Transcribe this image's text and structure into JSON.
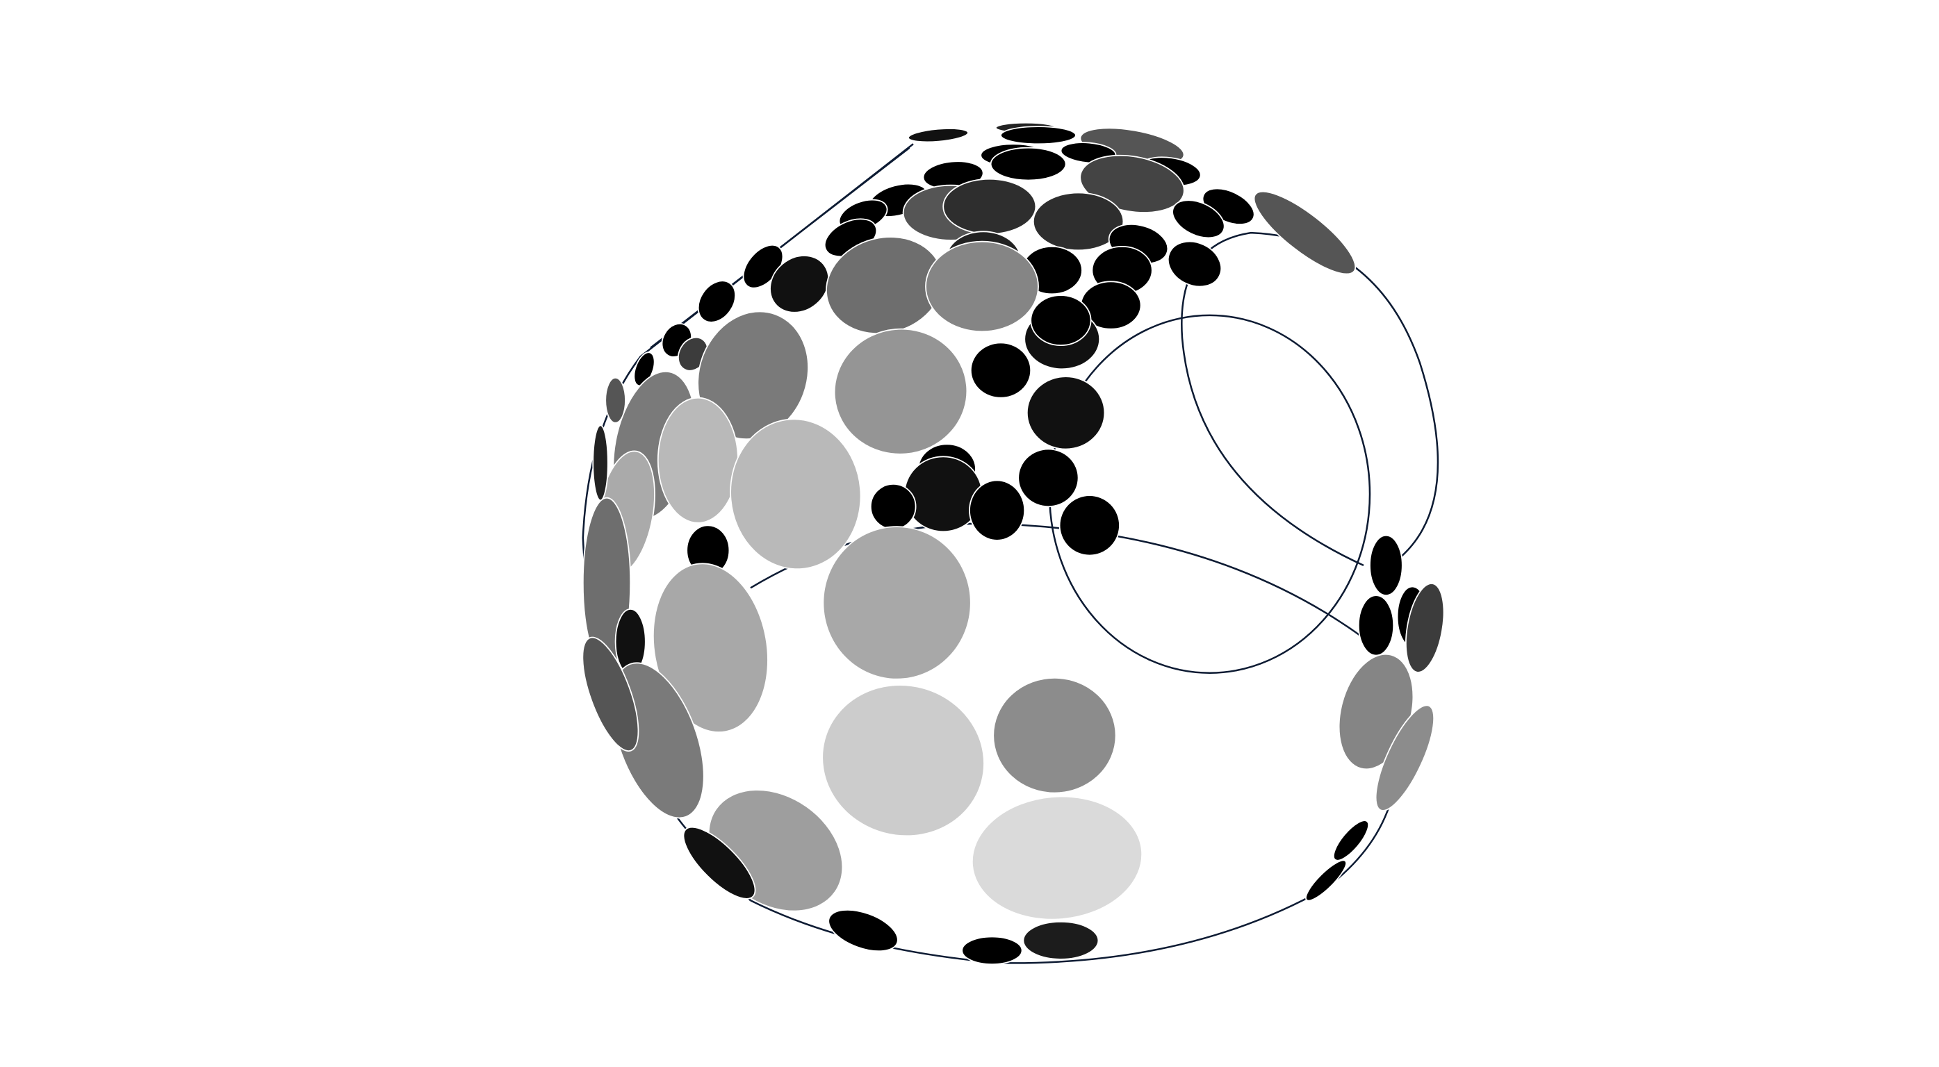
{
  "figure": {
    "subject": "sphere-with-disc-pattern",
    "background": "#ffffff",
    "outline_color": "#0d1b33",
    "disc_stroke": "#ffffff",
    "disc_tones": [
      "#000000",
      "#111111",
      "#1c1c1c",
      "#2e2e2e",
      "#3c3c3c",
      "#444444",
      "#555555",
      "#6e6e6e",
      "#7a7a7a",
      "#858585",
      "#8c8c8c",
      "#959595",
      "#9e9e9e",
      "#a8a8a8",
      "#b9b9b9",
      "#cccccc",
      "#dadada"
    ]
  }
}
